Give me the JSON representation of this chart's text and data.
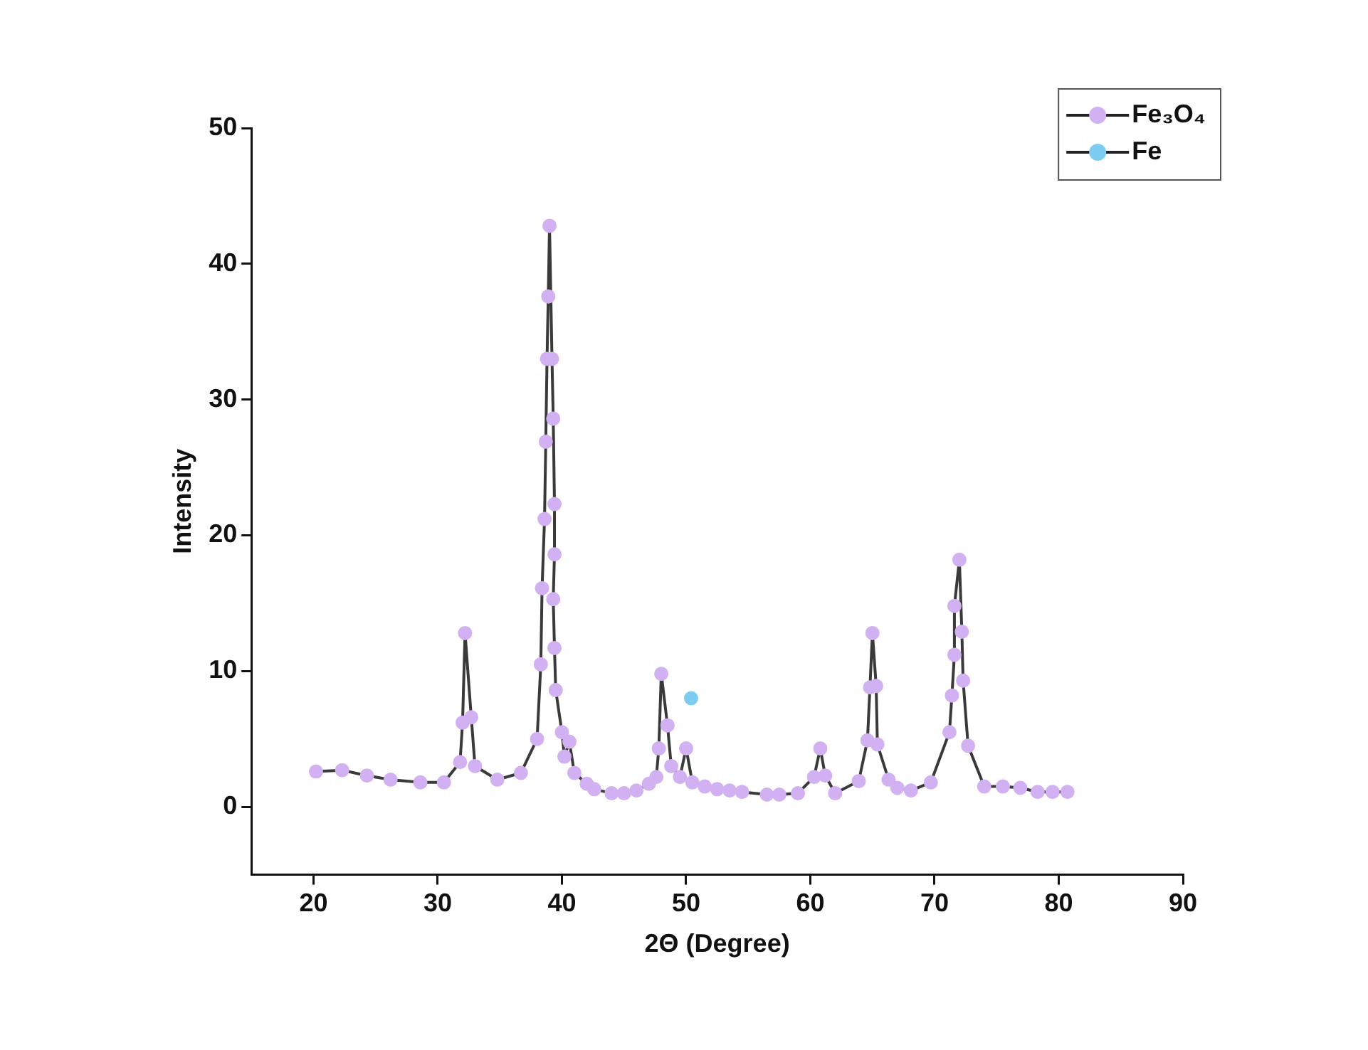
{
  "chart_data": {
    "type": "line",
    "xlabel": "2Θ (Degree)",
    "ylabel": "Intensity",
    "xlim": [
      15,
      90
    ],
    "xticks": [
      20,
      30,
      40,
      50,
      60,
      70,
      80,
      90
    ],
    "ylim": [
      -5,
      50
    ],
    "yticks": [
      0,
      10,
      20,
      30,
      40,
      50
    ],
    "grid": false,
    "legend": "top right",
    "marker": "circle",
    "line_style": "solid",
    "series": [
      {
        "name": "Fe₃O₄",
        "color": "#d2b1f3",
        "x": [
          20.2,
          22.3,
          24.3,
          26.2,
          28.6,
          30.5,
          31.8,
          32.0,
          32.2,
          32.7,
          33.0,
          34.8,
          36.7,
          38.0,
          38.3,
          38.4,
          38.6,
          38.7,
          38.8,
          38.9,
          39.0,
          39.2,
          39.3,
          39.4,
          39.4,
          39.3,
          39.4,
          39.5,
          40.0,
          40.2,
          40.6,
          41.0,
          42.0,
          42.6,
          44.0,
          45.0,
          46.0,
          47.0,
          47.6,
          47.8,
          48.0,
          48.5,
          48.8,
          49.5,
          50.0,
          50.5,
          51.5,
          52.5,
          53.5,
          54.5,
          56.5,
          57.5,
          59.0,
          60.3,
          60.8,
          61.2,
          62.0,
          63.9,
          64.6,
          64.8,
          65.0,
          65.3,
          65.4,
          66.3,
          67.0,
          68.1,
          69.7,
          71.2,
          71.4,
          71.6,
          71.6,
          72.0,
          72.2,
          72.3,
          72.7,
          74.0,
          75.5,
          76.9,
          78.3,
          79.5,
          80.7
        ],
        "values": [
          2.6,
          2.7,
          2.3,
          2.0,
          1.8,
          1.8,
          3.3,
          6.2,
          12.8,
          6.6,
          3.0,
          2.0,
          2.5,
          5.0,
          10.5,
          16.1,
          21.2,
          26.9,
          33.0,
          37.6,
          42.8,
          33.0,
          28.6,
          22.3,
          18.6,
          15.3,
          11.7,
          8.6,
          5.5,
          3.7,
          4.8,
          2.5,
          1.7,
          1.3,
          1.0,
          1.0,
          1.2,
          1.7,
          2.2,
          4.3,
          9.8,
          6.0,
          3.0,
          2.2,
          4.3,
          1.8,
          1.5,
          1.3,
          1.2,
          1.1,
          0.9,
          0.9,
          1.0,
          2.2,
          4.3,
          2.3,
          1.0,
          1.9,
          4.9,
          8.8,
          12.8,
          8.9,
          4.6,
          2.0,
          1.4,
          1.2,
          1.8,
          5.5,
          8.2,
          11.2,
          14.8,
          18.2,
          12.9,
          9.3,
          4.5,
          1.5,
          1.5,
          1.4,
          1.1,
          1.1,
          1.1
        ]
      },
      {
        "name": "Fe",
        "color": "#7dcdf3",
        "x": [
          50.4
        ],
        "values": [
          8.0
        ]
      }
    ]
  }
}
